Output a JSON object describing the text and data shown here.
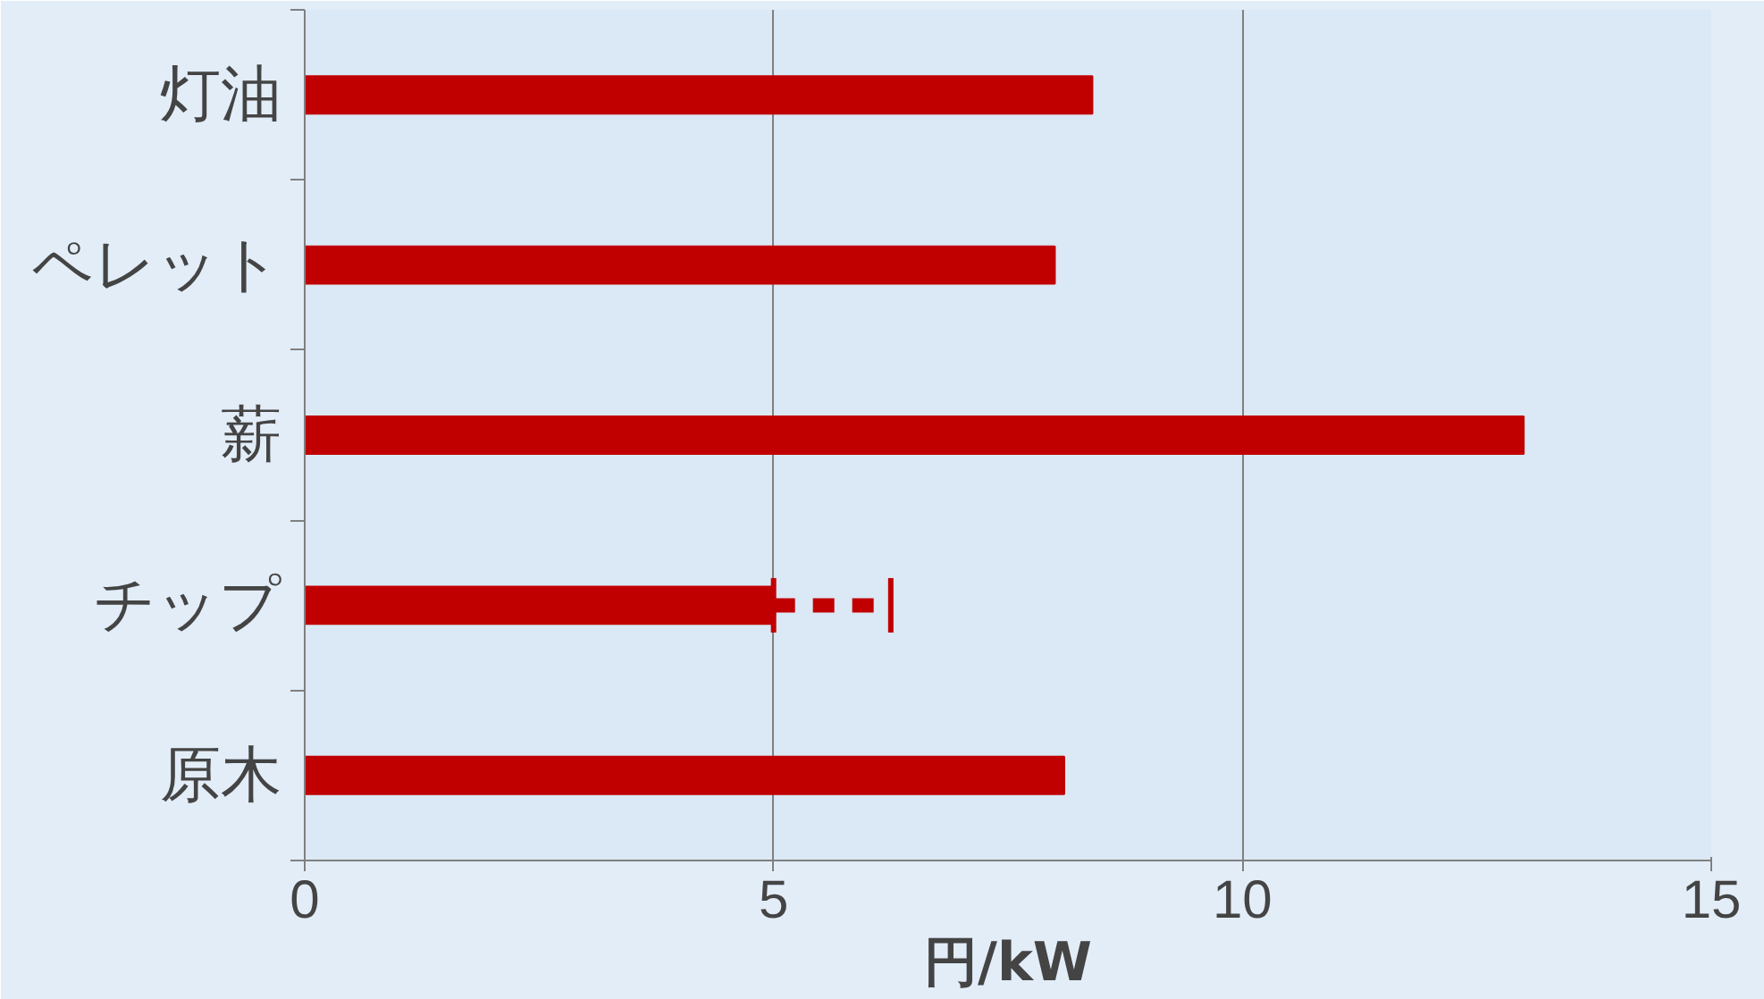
{
  "chart_data": {
    "type": "bar",
    "orientation": "horizontal",
    "xlabel": "円/kW",
    "categories": [
      "灯油",
      "ペレット",
      "薪",
      "チップ",
      "原木"
    ],
    "values": [
      8.4,
      8.0,
      13.0,
      5.0,
      8.1
    ],
    "errors": [
      null,
      null,
      null,
      [
        5.0,
        6.25
      ],
      null
    ],
    "color": "#c00000",
    "xlim": [
      0,
      15
    ],
    "xticks": [
      0,
      5,
      10,
      15
    ],
    "grid": "x"
  }
}
